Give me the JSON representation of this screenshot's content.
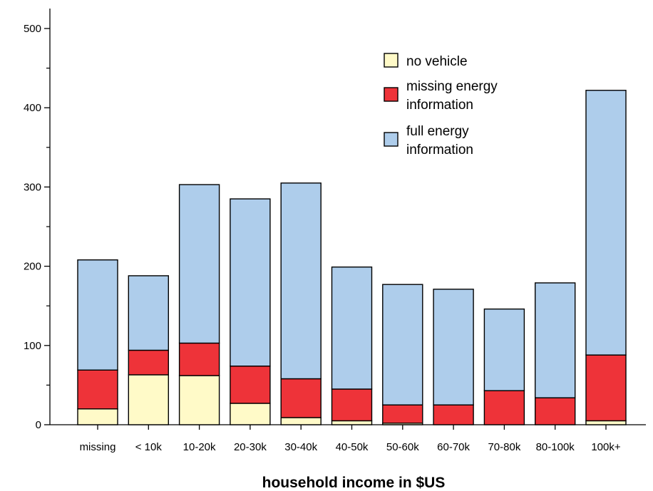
{
  "chart_data": {
    "type": "bar",
    "stacked": true,
    "title": "",
    "xlabel": "household income in $US",
    "ylabel": "",
    "ylim": [
      0,
      520
    ],
    "yticks": [
      0,
      100,
      200,
      300,
      400,
      500
    ],
    "grid": false,
    "legend_position": "top-right",
    "categories": [
      "missing",
      "< 10k",
      "10-20k",
      "20-30k",
      "30-40k",
      "40-50k",
      "50-60k",
      "60-70k",
      "70-80k",
      "80-100k",
      "100k+"
    ],
    "series": [
      {
        "name": "no vehicle",
        "color": "#fffac8",
        "values": [
          20,
          63,
          62,
          27,
          9,
          5,
          2,
          0,
          0,
          0,
          5
        ]
      },
      {
        "name": "missing energy information",
        "color": "#ee3339",
        "values": [
          49,
          31,
          41,
          47,
          49,
          40,
          23,
          25,
          43,
          34,
          83
        ]
      },
      {
        "name": "full energy information",
        "color": "#aecdeb",
        "values": [
          139,
          94,
          200,
          211,
          247,
          154,
          152,
          146,
          103,
          145,
          334
        ]
      }
    ]
  }
}
